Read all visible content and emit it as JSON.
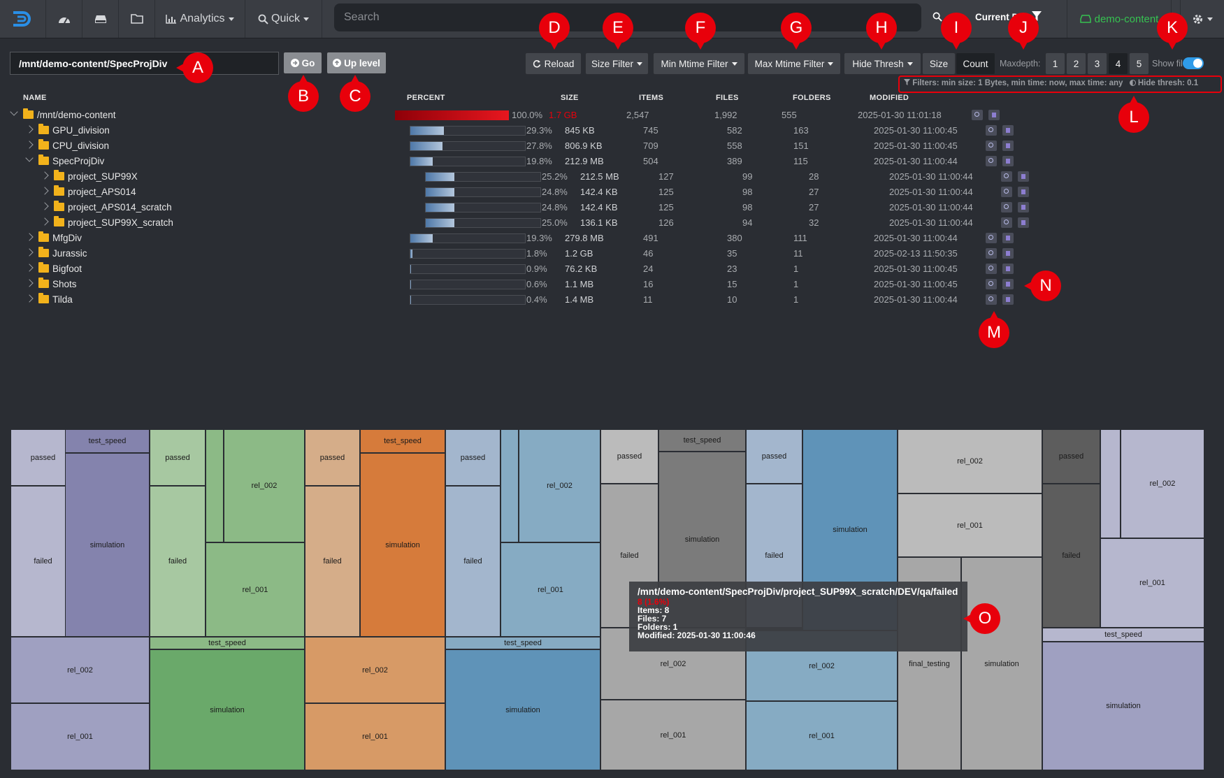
{
  "nav": {
    "analytics_label": "Analytics",
    "quick_label": "Quick",
    "search_placeholder": "Search",
    "current_label": "Current D",
    "storage_label": "demo-content"
  },
  "toolbar": {
    "path_value": "/mnt/demo-content/SpecProjDiv",
    "go_label": "Go",
    "up_label": "Up level",
    "reload_label": "Reload",
    "size_filter_label": "Size Filter",
    "min_mtime_label": "Min Mtime Filter",
    "max_mtime_label": "Max Mtime Filter",
    "hide_thresh_label": "Hide Thresh",
    "size_label": "Size",
    "count_label": "Count",
    "maxdepth_label": "Maxdepth:",
    "depths": [
      "1",
      "2",
      "3",
      "4",
      "5"
    ],
    "active_depth": "4",
    "show_files_label": "Show files",
    "show_files_on": true,
    "filters_text": "Filters: min size: 1 Bytes, min time: now, max time: any",
    "hide_thresh_text": "Hide thresh: 0.1"
  },
  "columns": {
    "name": "NAME",
    "percent": "PERCENT",
    "size": "SIZE",
    "items": "ITEMS",
    "files": "FILES",
    "folders": "FOLDERS",
    "modified": "MODIFIED"
  },
  "tree": [
    {
      "name": "/mnt/demo-content",
      "depth": 0,
      "expanded": true,
      "percent": "100.0%",
      "fraction": 1.0,
      "size": "1.7 GB",
      "items": "2,547",
      "files": "1,992",
      "folders": "555",
      "modified": "2025-01-30 11:01:18",
      "root": true
    },
    {
      "name": "GPU_division",
      "depth": 1,
      "expanded": false,
      "percent": "29.3%",
      "fraction": 0.293,
      "size": "845 KB",
      "items": "745",
      "files": "582",
      "folders": "163",
      "modified": "2025-01-30 11:00:45"
    },
    {
      "name": "CPU_division",
      "depth": 1,
      "expanded": false,
      "percent": "27.8%",
      "fraction": 0.278,
      "size": "806.9 KB",
      "items": "709",
      "files": "558",
      "folders": "151",
      "modified": "2025-01-30 11:00:45"
    },
    {
      "name": "SpecProjDiv",
      "depth": 1,
      "expanded": true,
      "percent": "19.8%",
      "fraction": 0.198,
      "size": "212.9 MB",
      "items": "504",
      "files": "389",
      "folders": "115",
      "modified": "2025-01-30 11:00:44"
    },
    {
      "name": "project_SUP99X",
      "depth": 2,
      "expanded": false,
      "percent": "25.2%",
      "fraction": 0.252,
      "size": "212.5 MB",
      "items": "127",
      "files": "99",
      "folders": "28",
      "modified": "2025-01-30 11:00:44"
    },
    {
      "name": "project_APS014",
      "depth": 2,
      "expanded": false,
      "percent": "24.8%",
      "fraction": 0.248,
      "size": "142.4 KB",
      "items": "125",
      "files": "98",
      "folders": "27",
      "modified": "2025-01-30 11:00:44"
    },
    {
      "name": "project_APS014_scratch",
      "depth": 2,
      "expanded": false,
      "percent": "24.8%",
      "fraction": 0.248,
      "size": "142.4 KB",
      "items": "125",
      "files": "98",
      "folders": "27",
      "modified": "2025-01-30 11:00:44"
    },
    {
      "name": "project_SUP99X_scratch",
      "depth": 2,
      "expanded": false,
      "percent": "25.0%",
      "fraction": 0.25,
      "size": "136.1 KB",
      "items": "126",
      "files": "94",
      "folders": "32",
      "modified": "2025-01-30 11:00:44"
    },
    {
      "name": "MfgDiv",
      "depth": 1,
      "expanded": false,
      "percent": "19.3%",
      "fraction": 0.193,
      "size": "279.8 MB",
      "items": "491",
      "files": "380",
      "folders": "111",
      "modified": "2025-01-30 11:00:44"
    },
    {
      "name": "Jurassic",
      "depth": 1,
      "expanded": false,
      "percent": "1.8%",
      "fraction": 0.018,
      "size": "1.2 GB",
      "items": "46",
      "files": "35",
      "folders": "11",
      "modified": "2025-02-13 11:50:35"
    },
    {
      "name": "Bigfoot",
      "depth": 1,
      "expanded": false,
      "percent": "0.9%",
      "fraction": 0.009,
      "size": "76.2 KB",
      "items": "24",
      "files": "23",
      "folders": "1",
      "modified": "2025-01-30 11:00:45"
    },
    {
      "name": "Shots",
      "depth": 1,
      "expanded": false,
      "percent": "0.6%",
      "fraction": 0.006,
      "size": "1.1 MB",
      "items": "16",
      "files": "15",
      "folders": "1",
      "modified": "2025-01-30 11:00:45"
    },
    {
      "name": "Tilda",
      "depth": 1,
      "expanded": false,
      "percent": "0.4%",
      "fraction": 0.004,
      "size": "1.4 MB",
      "items": "11",
      "files": "10",
      "folders": "1",
      "modified": "2025-01-30 11:00:44"
    }
  ],
  "markers": [
    "A",
    "B",
    "C",
    "D",
    "E",
    "F",
    "G",
    "H",
    "I",
    "J",
    "K",
    "L",
    "M",
    "N",
    "O"
  ],
  "treemap_colors": {
    "lavender": "#9fa0c1",
    "lavender_dark": "#8483ad",
    "lavender_light": "#b6b7ce",
    "green": "#6aa96a",
    "green_mid": "#8cba86",
    "green_light": "#a7c8a1",
    "orange": "#d67b3b",
    "orange_mid": "#d79a66",
    "orange_light": "#d5ad89",
    "blue": "#5f93b8",
    "blue_mid": "#86abc3",
    "blue_light": "#a3b6cd",
    "gray": "#a7a7a7",
    "gray_dark": "#7b7b7b",
    "gray_light": "#bbbbbb",
    "charcoal": "#5d5d5d"
  },
  "treemap_labels": {
    "passed": "passed",
    "failed": "failed",
    "simulation": "simulation",
    "test_speed": "test_speed",
    "rel_002": "rel_002",
    "rel_001": "rel_001",
    "final_testing": "final_testing"
  },
  "tooltip": {
    "path": "/mnt/demo-content/SpecProjDiv/project_SUP99X_scratch/DEV/qa/failed",
    "size_line": "8 (1.6%)",
    "items": "Items: 8",
    "files": "Files: 7",
    "folders": "Folders: 1",
    "modified": "Modified: 2025-01-30 11:00:46"
  }
}
